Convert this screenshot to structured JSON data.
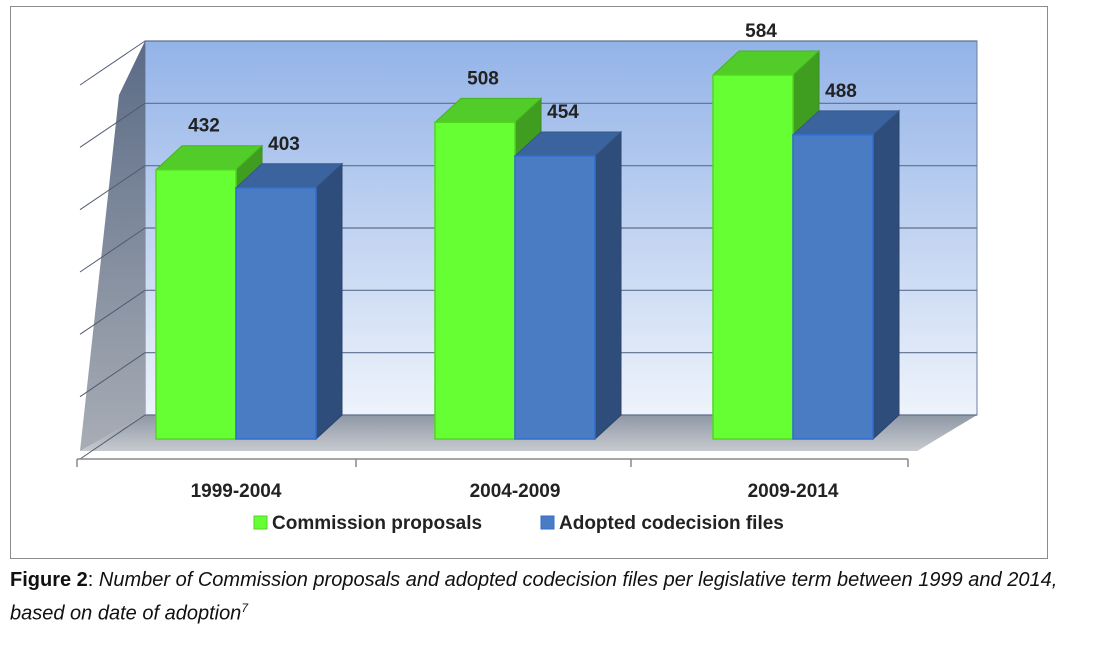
{
  "chart_data": {
    "type": "bar",
    "title": "",
    "xlabel": "",
    "ylabel": "",
    "ylim": [
      0,
      600
    ],
    "grid": true,
    "legend_position": "bottom",
    "categories": [
      "1999-2004",
      "2004-2009",
      "2009-2014"
    ],
    "series": [
      {
        "name": "Commission proposals",
        "values": [
          432,
          508,
          584
        ],
        "color": "#66ff33"
      },
      {
        "name": "Adopted codecision files",
        "values": [
          403,
          454,
          488
        ],
        "color": "#4a7cc4"
      }
    ]
  },
  "caption": {
    "label": "Figure 2",
    "separator": ": ",
    "text": "Number of Commission proposals and adopted codecision files per legislative term between 1999 and 2014, based on date of adoption",
    "footnote": "7"
  }
}
